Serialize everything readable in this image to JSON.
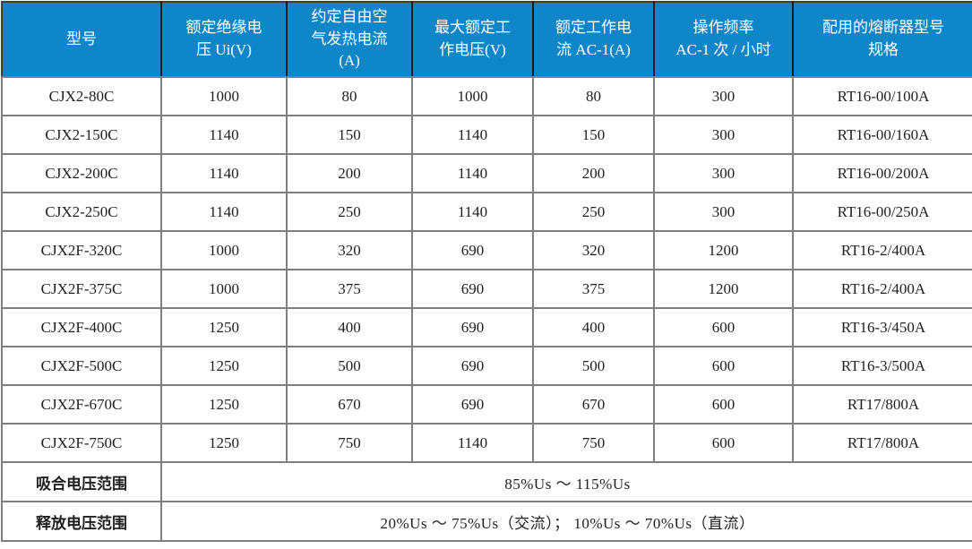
{
  "colors": {
    "header_bg": "#0e86c8",
    "header_text": "#ffffff",
    "grid_border": "#7f7f7f",
    "outer_border": "#3f3f3f",
    "body_text": "#1f1f1f"
  },
  "table": {
    "columns": [
      "型号",
      "额定绝缘电\n压 Ui(V)",
      "约定自由空\n气发热电流\n(A)",
      "最大额定工\n作电压(V)",
      "额定工作电\n流 AC-1(A)",
      "操作频率\nAC-1 次 / 小时",
      "配用的熔断器型号\n规格"
    ],
    "rows": [
      [
        "CJX2-80C",
        "1000",
        "80",
        "1000",
        "80",
        "300",
        "RT16-00/100A"
      ],
      [
        "CJX2-150C",
        "1140",
        "150",
        "1140",
        "150",
        "300",
        "RT16-00/160A"
      ],
      [
        "CJX2-200C",
        "1140",
        "200",
        "1140",
        "200",
        "300",
        "RT16-00/200A"
      ],
      [
        "CJX2-250C",
        "1140",
        "250",
        "1140",
        "250",
        "300",
        "RT16-00/250A"
      ],
      [
        "CJX2F-320C",
        "1000",
        "320",
        "690",
        "320",
        "1200",
        "RT16-2/400A"
      ],
      [
        "CJX2F-375C",
        "1000",
        "375",
        "690",
        "375",
        "1200",
        "RT16-2/400A"
      ],
      [
        "CJX2F-400C",
        "1250",
        "400",
        "690",
        "400",
        "600",
        "RT16-3/450A"
      ],
      [
        "CJX2F-500C",
        "1250",
        "500",
        "690",
        "500",
        "600",
        "RT16-3/500A"
      ],
      [
        "CJX2F-670C",
        "1250",
        "670",
        "690",
        "670",
        "600",
        "RT17/800A"
      ],
      [
        "CJX2F-750C",
        "1250",
        "750",
        "1140",
        "750",
        "600",
        "RT17/800A"
      ]
    ],
    "footer_rows": [
      {
        "label": "吸合电压范围",
        "value": "85%Us ～ 115%Us"
      },
      {
        "label": "释放电压范围",
        "value": "20%Us ～ 75%Us（交流）； 10%Us ～ 70%Us（直流）"
      }
    ]
  }
}
